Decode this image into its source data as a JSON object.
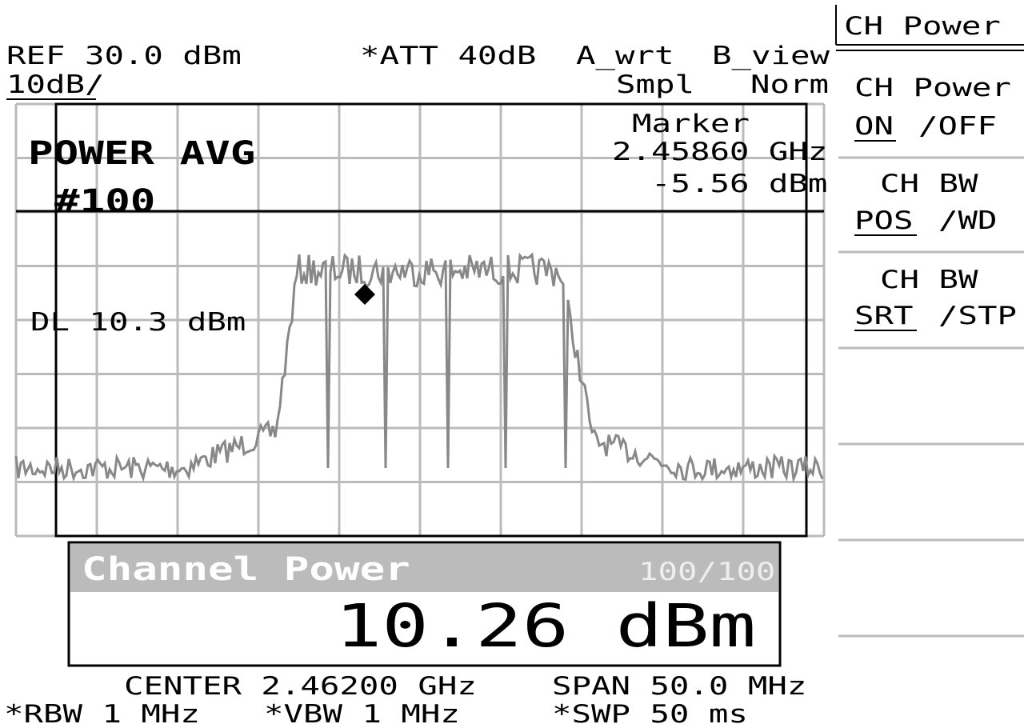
{
  "header": {
    "ref": "REF 30.0 dBm",
    "att": "*ATT 40dB",
    "trace_a": "A_wrt",
    "trace_b": "B_view",
    "scale": "10dB/",
    "detector": "Smpl",
    "mode": "Norm"
  },
  "marker": {
    "label": "Marker",
    "frequency": "2.45860 GHz",
    "level": "-5.56 dBm"
  },
  "overlay": {
    "average": "POWER AVG",
    "count": "#100",
    "display_line": "DL 10.3 dBm"
  },
  "result": {
    "title": "Channel Power",
    "progress": "100/100",
    "value": "10.26 dBm"
  },
  "footer": {
    "center": "CENTER 2.46200 GHz",
    "span": "SPAN 50.0 MHz",
    "rbw": "*RBW 1 MHz",
    "vbw": "*VBW 1 MHz",
    "sweep": "*SWP 50 ms"
  },
  "menu": {
    "title": "CH Power",
    "items": [
      {
        "label": "CH Power",
        "selected": "ON",
        "other": "/OFF"
      },
      {
        "label": "CH BW",
        "selected": "POS",
        "other": "/WD"
      },
      {
        "label": "CH BW",
        "selected": "SRT",
        "other": "/STP"
      }
    ]
  }
}
